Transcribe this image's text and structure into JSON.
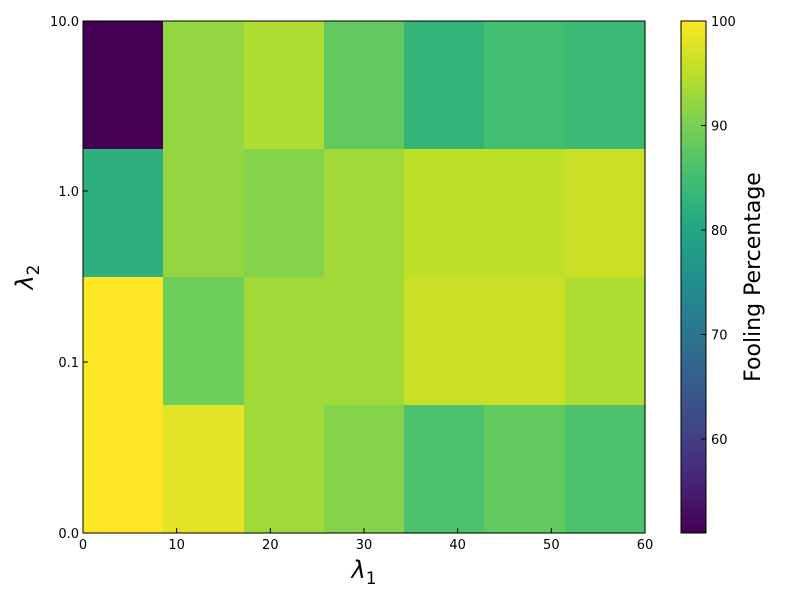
{
  "chart_data": {
    "type": "heatmap",
    "title": "",
    "xlabel": "λ",
    "xlabel_sub": "1",
    "ylabel": "λ",
    "ylabel_sub": "2",
    "colorbar_label": "Fooling Percentage",
    "colormap": "viridis",
    "color_range": [
      51,
      100
    ],
    "xlim": [
      0,
      60
    ],
    "x_ticks": [
      "0",
      "10",
      "20",
      "30",
      "40",
      "50",
      "60"
    ],
    "y_ticks": [
      "0.0",
      "0.1",
      "1.0",
      "10.0"
    ],
    "colorbar_ticks": [
      "60",
      "70",
      "80",
      "90",
      "100"
    ],
    "grid": false,
    "columns": 7,
    "rows_top_to_bottom": [
      [
        51,
        92,
        94,
        88,
        83,
        85,
        84
      ],
      [
        82,
        92,
        91,
        93,
        95,
        95,
        96
      ],
      [
        100,
        89,
        93,
        93,
        96,
        96,
        94
      ],
      [
        100,
        98,
        93,
        91,
        86,
        88,
        86
      ]
    ]
  }
}
